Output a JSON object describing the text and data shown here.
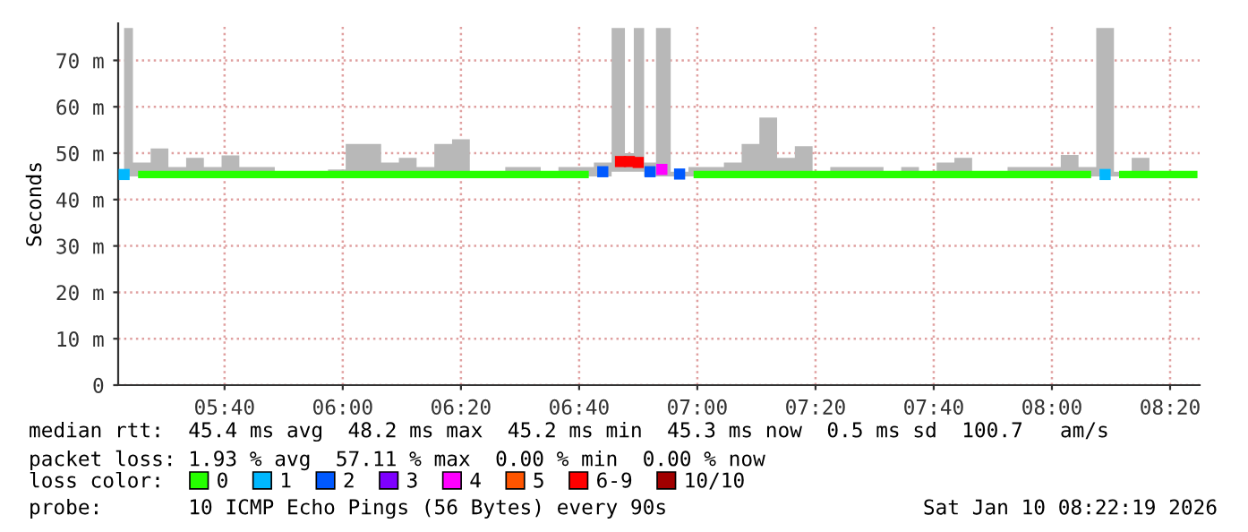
{
  "chart_data": {
    "type": "line",
    "ylabel": "Seconds",
    "x": [
      "2026-01-10T05:23",
      "2026-01-10T05:26",
      "2026-01-10T05:29",
      "2026-01-10T05:32",
      "2026-01-10T05:35",
      "2026-01-10T05:38",
      "2026-01-10T05:41",
      "2026-01-10T05:44",
      "2026-01-10T05:47",
      "2026-01-10T05:50",
      "2026-01-10T05:53",
      "2026-01-10T05:56",
      "2026-01-10T05:59",
      "2026-01-10T06:02",
      "2026-01-10T06:05",
      "2026-01-10T06:08",
      "2026-01-10T06:11",
      "2026-01-10T06:14",
      "2026-01-10T06:17",
      "2026-01-10T06:20",
      "2026-01-10T06:23",
      "2026-01-10T06:26",
      "2026-01-10T06:29",
      "2026-01-10T06:32",
      "2026-01-10T06:35",
      "2026-01-10T06:38",
      "2026-01-10T06:41",
      "2026-01-10T06:44",
      "2026-01-10T06:47",
      "2026-01-10T06:48:30",
      "2026-01-10T06:50",
      "2026-01-10T06:52",
      "2026-01-10T06:54",
      "2026-01-10T06:57",
      "2026-01-10T07:00",
      "2026-01-10T07:03",
      "2026-01-10T07:06",
      "2026-01-10T07:09",
      "2026-01-10T07:12",
      "2026-01-10T07:15",
      "2026-01-10T07:18",
      "2026-01-10T07:21",
      "2026-01-10T07:24",
      "2026-01-10T07:27",
      "2026-01-10T07:30",
      "2026-01-10T07:33",
      "2026-01-10T07:36",
      "2026-01-10T07:39",
      "2026-01-10T07:42",
      "2026-01-10T07:45",
      "2026-01-10T07:48",
      "2026-01-10T07:51",
      "2026-01-10T07:54",
      "2026-01-10T07:57",
      "2026-01-10T08:00",
      "2026-01-10T08:03",
      "2026-01-10T08:06",
      "2026-01-10T08:09",
      "2026-01-10T08:12",
      "2026-01-10T08:15",
      "2026-01-10T08:18",
      "2026-01-10T08:21",
      "2026-01-10T08:24"
    ],
    "series": [
      {
        "name": "0",
        "color": "#26ff00",
        "values": [
          null,
          45.4,
          45.4,
          45.4,
          45.4,
          45.4,
          45.4,
          45.4,
          45.4,
          45.4,
          45.4,
          45.4,
          45.4,
          45.4,
          45.4,
          45.4,
          45.4,
          45.4,
          45.4,
          45.4,
          45.4,
          45.4,
          45.4,
          45.4,
          45.4,
          45.4,
          45.4,
          null,
          null,
          null,
          null,
          null,
          null,
          null,
          45.4,
          45.4,
          45.4,
          45.4,
          45.4,
          45.4,
          45.4,
          45.4,
          45.4,
          45.4,
          45.4,
          45.4,
          45.4,
          45.4,
          45.4,
          45.4,
          45.4,
          45.4,
          45.4,
          45.4,
          45.4,
          45.4,
          45.4,
          null,
          45.4,
          45.4,
          45.4,
          45.4,
          45.4
        ],
        "lower": [
          45,
          45,
          45,
          45,
          45,
          45,
          45,
          45,
          45,
          45,
          45,
          45,
          45,
          45,
          45,
          45,
          45,
          45,
          45,
          45,
          45,
          45,
          45,
          45,
          45,
          45,
          45,
          45,
          46,
          46,
          46,
          45,
          45,
          45,
          45,
          45,
          45,
          45,
          45,
          45,
          45,
          45,
          45,
          45,
          45,
          45,
          45,
          45,
          45,
          45,
          45,
          45,
          45,
          45,
          45,
          45,
          45,
          45,
          45,
          45,
          45,
          45,
          45
        ],
        "upper": [
          77,
          48,
          51,
          47,
          49,
          47,
          49.5,
          47,
          47,
          46,
          46,
          46,
          46.5,
          52,
          52,
          48,
          49,
          47,
          52,
          53,
          46,
          46,
          47,
          47,
          46,
          47,
          47,
          48,
          77,
          50,
          77,
          48,
          77,
          46,
          47,
          47,
          48,
          52,
          57.7,
          49,
          51.5,
          46,
          47,
          47,
          47,
          46,
          47,
          46,
          48,
          49,
          46,
          46,
          47,
          47,
          47,
          49.6,
          47,
          77,
          46,
          49,
          46,
          45.5,
          45.5
        ]
      },
      {
        "name": "1",
        "color": "#00b8ff",
        "type": "scatter",
        "marker": "square",
        "x": [
          "2026-01-10T05:23",
          "2026-01-10T08:09"
        ],
        "values": [
          45.4,
          45.4
        ]
      },
      {
        "name": "2",
        "color": "#0059ff",
        "type": "scatter",
        "marker": "square",
        "x": [
          "2026-01-10T06:44",
          "2026-01-10T06:52",
          "2026-01-10T06:57"
        ],
        "values": [
          46,
          46,
          45.5
        ]
      },
      {
        "name": "3",
        "color": "#7e00ff",
        "type": "scatter",
        "marker": "square",
        "values": [
          null,
          null,
          null,
          null,
          null,
          null,
          null,
          null,
          null,
          null,
          null,
          null,
          null,
          null,
          null,
          null,
          null,
          null,
          null,
          null,
          null,
          null,
          null,
          null,
          null,
          null,
          null,
          null,
          null,
          null,
          null,
          null,
          null,
          null,
          null,
          null,
          null,
          null,
          null,
          null,
          null,
          null,
          null,
          null,
          null,
          null,
          null,
          null,
          null,
          null,
          null,
          null,
          null,
          null,
          null,
          null,
          null,
          null,
          null,
          null,
          null,
          null,
          null
        ]
      },
      {
        "name": "4",
        "color": "#ff00ff",
        "type": "scatter",
        "marker": "square",
        "x": [
          "2026-01-10T06:54"
        ],
        "values": [
          46.5
        ]
      },
      {
        "name": "5",
        "color": "#ff5500",
        "type": "scatter",
        "marker": "square",
        "values": [
          null,
          null,
          null,
          null,
          null,
          null,
          null,
          null,
          null,
          null,
          null,
          null,
          null,
          null,
          null,
          null,
          null,
          null,
          null,
          null,
          null,
          null,
          null,
          null,
          null,
          null,
          null,
          null,
          null,
          null,
          null,
          null,
          null,
          null,
          null,
          null,
          null,
          null,
          null,
          null,
          null,
          null,
          null,
          null,
          null,
          null,
          null,
          null,
          null,
          null,
          null,
          null,
          null,
          null,
          null,
          null,
          null,
          null,
          null,
          null,
          null,
          null,
          null
        ]
      },
      {
        "name": "6-9",
        "color": "#ff0000",
        "type": "scatter",
        "marker": "square",
        "x": [
          "2026-01-10T06:47",
          "2026-01-10T06:48:30",
          "2026-01-10T06:50"
        ],
        "values": [
          48.2,
          48.2,
          48
        ]
      },
      {
        "name": "10/10",
        "color": "#a10000",
        "type": "scatter",
        "marker": "square",
        "values": [
          null,
          null,
          null,
          null,
          null,
          null,
          null,
          null,
          null,
          null,
          null,
          null,
          null,
          null,
          null,
          null,
          null,
          null,
          null,
          null,
          null,
          null,
          null,
          null,
          null,
          null,
          null,
          null,
          null,
          null,
          null,
          null,
          null,
          null,
          null,
          null,
          null,
          null,
          null,
          null,
          null,
          null,
          null,
          null,
          null,
          null,
          null,
          null,
          null,
          null,
          null,
          null,
          null,
          null,
          null,
          null,
          null,
          null,
          null,
          null,
          null,
          null,
          null
        ]
      }
    ],
    "xlim": [
      "2026-01-10T05:22",
      "2026-01-10T08:25"
    ],
    "xticks": [
      {
        "value": "2026-01-10T05:40",
        "label": "05:40"
      },
      {
        "value": "2026-01-10T06:00",
        "label": "06:00"
      },
      {
        "value": "2026-01-10T06:20",
        "label": "06:20"
      },
      {
        "value": "2026-01-10T06:40",
        "label": "06:40"
      },
      {
        "value": "2026-01-10T07:00",
        "label": "07:00"
      },
      {
        "value": "2026-01-10T07:20",
        "label": "07:20"
      },
      {
        "value": "2026-01-10T07:40",
        "label": "07:40"
      },
      {
        "value": "2026-01-10T08:00",
        "label": "08:00"
      },
      {
        "value": "2026-01-10T08:20",
        "label": "08:20"
      }
    ],
    "ylim": [
      0,
      78
    ],
    "yticks": [
      0,
      {
        "value": 10,
        "label": "10 m"
      },
      {
        "value": 20,
        "label": "20 m"
      },
      {
        "value": 30,
        "label": "30 m"
      },
      {
        "value": 40,
        "label": "40 m"
      },
      {
        "value": 50,
        "label": "50 m"
      },
      {
        "value": 60,
        "label": "60 m"
      },
      {
        "value": 70,
        "label": "70 m"
      }
    ],
    "grid": true,
    "legend": "bottom",
    "annotations": [
      "median rtt:  45.4 ms avg  48.2 ms max  45.2 ms min  45.3 ms now  0.5 ms sd  100.7   am/s",
      "packet loss: 1.93 % avg  57.11 % max  0.00 % min  0.00 % now",
      "loss color:",
      "probe:       10 ICMP Echo Pings (56 Bytes) every 90s",
      "Sat Jan 10 08:22:19 2026"
    ]
  }
}
